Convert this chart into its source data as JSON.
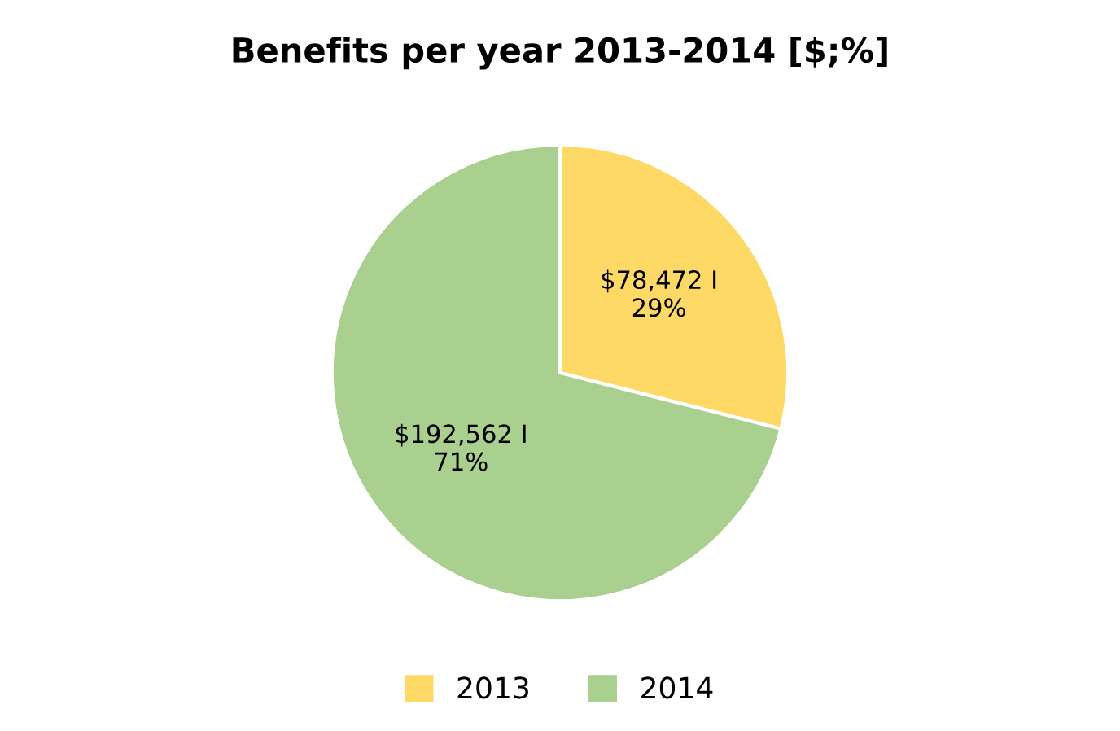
{
  "chart_data": {
    "type": "pie",
    "title": "Benefits per year 2013-2014 [$;%]",
    "categories": [
      "2013",
      "2014"
    ],
    "values": [
      78472,
      192562
    ],
    "colors": [
      "#ffd966",
      "#a9d08e"
    ],
    "value_labels": [
      "$78,472 I\n29%",
      "$192,562 I\n71%"
    ],
    "legend": "bottom"
  }
}
